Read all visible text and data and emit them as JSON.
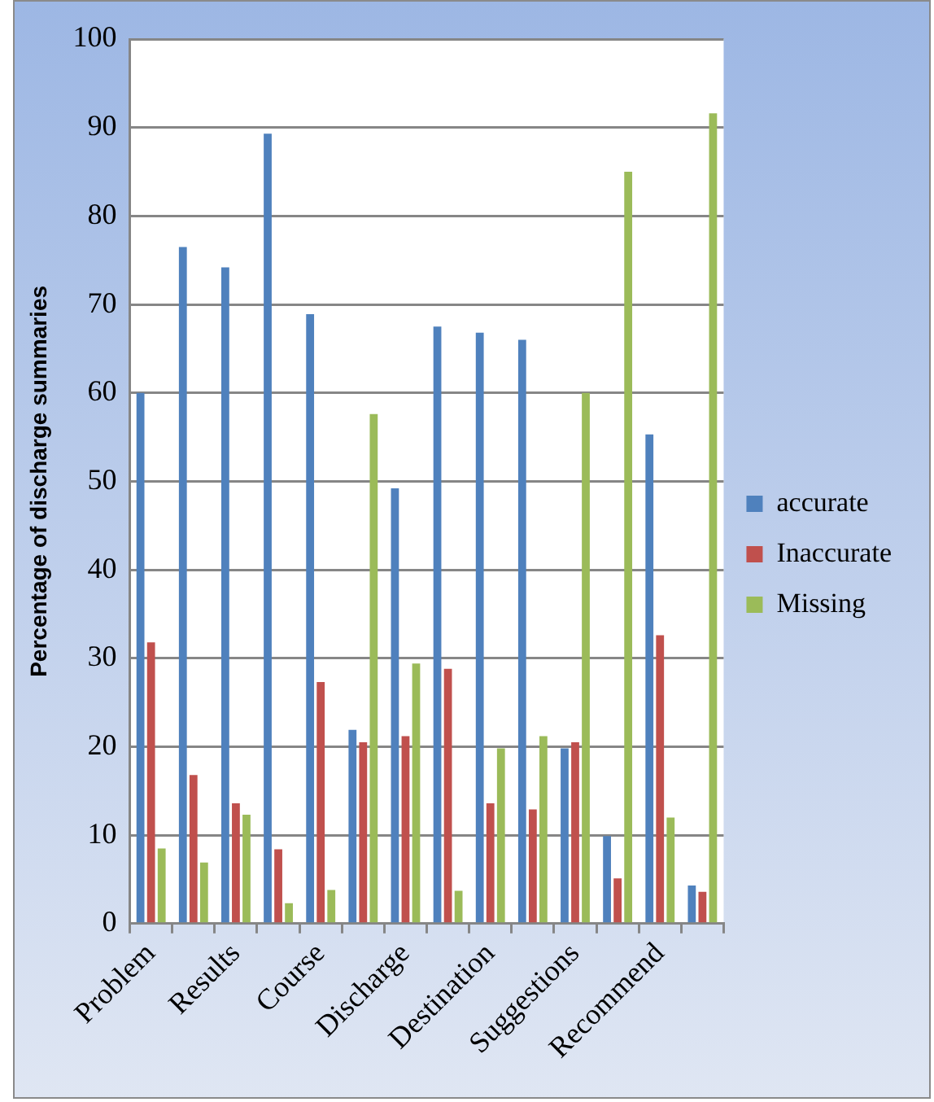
{
  "chart_data": {
    "type": "bar",
    "ylabel": "Percentage of discharge summaries",
    "categories": [
      "Problem",
      null,
      "Results",
      null,
      "Course",
      null,
      "Discharge",
      null,
      "Destination",
      null,
      "Suggestions",
      null,
      "Recommend",
      null
    ],
    "series": [
      {
        "name": "accurate",
        "color": "#4f81bd",
        "values": [
          60,
          76.5,
          74.2,
          89.3,
          68.9,
          21.9,
          49.2,
          67.5,
          66.8,
          66,
          19.8,
          9.9,
          55.3,
          4.3
        ]
      },
      {
        "name": "Inaccurate",
        "color": "#c0504d",
        "values": [
          31.8,
          16.8,
          13.6,
          8.4,
          27.3,
          20.5,
          21.2,
          28.8,
          13.6,
          12.9,
          20.5,
          5.1,
          32.6,
          3.6
        ]
      },
      {
        "name": "Missing",
        "color": "#9bbb59",
        "values": [
          8.5,
          6.9,
          12.3,
          2.3,
          3.8,
          57.6,
          29.4,
          3.7,
          19.8,
          21.2,
          60,
          85,
          12,
          91.6
        ]
      }
    ],
    "ylim": [
      0,
      100
    ],
    "yticks": [
      0,
      10,
      20,
      30,
      40,
      50,
      60,
      70,
      80,
      90,
      100
    ],
    "grid": "y",
    "legend": "right"
  }
}
